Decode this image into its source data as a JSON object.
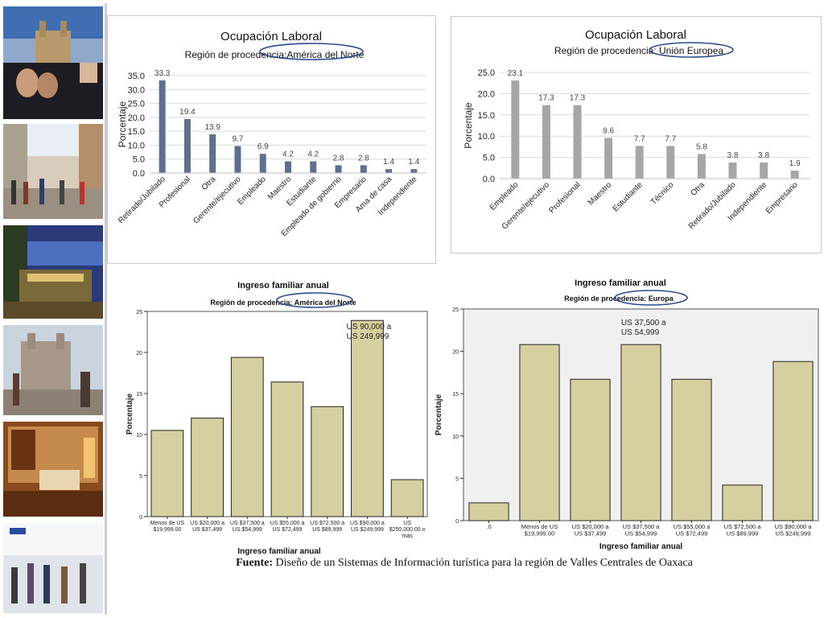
{
  "photos": [
    {
      "name": "photo-cathedral-pool",
      "desc": "pool"
    },
    {
      "name": "photo-street-crowd",
      "desc": "street"
    },
    {
      "name": "photo-terrace-night",
      "desc": "terrace"
    },
    {
      "name": "photo-church-plaza",
      "desc": "church"
    },
    {
      "name": "photo-hotel-room",
      "desc": "room"
    },
    {
      "name": "photo-airport",
      "desc": "airport"
    }
  ],
  "caption": {
    "label": "Fuente:",
    "text": " Diseño de un Sistemas de Información turística para la región de Valles Centrales de Oaxaca"
  },
  "chart_data": [
    {
      "id": "chart-tl",
      "type": "bar",
      "title": "Ocupación Laboral",
      "subtitle": "Región de procedencia:América del Norte",
      "ylabel": "Porcentaje",
      "xlabel": "",
      "ylim": [
        0,
        35
      ],
      "yticks": [
        "0.0",
        "5.0",
        "10.0",
        "15.0",
        "20.0",
        "25.0",
        "30.0",
        "35.0"
      ],
      "categories": [
        "Retirado/Jubilado",
        "Profesional",
        "Otra",
        "Gerente/ejecutivo",
        "Empleado",
        "Maestro",
        "Estudiante",
        "Empleado de gobierno",
        "Empresario",
        "Ama de casa",
        "Independiente"
      ],
      "values": [
        33.3,
        19.4,
        13.9,
        9.7,
        6.9,
        4.2,
        4.2,
        2.8,
        2.8,
        1.4,
        1.4
      ],
      "labels": [
        "33.3",
        "19.4",
        "13.9",
        "9.7",
        "6.9",
        "4.2",
        "4.2",
        "2.8",
        "2.8",
        "1.4",
        "1.4"
      ],
      "color": "#5f6f8e"
    },
    {
      "id": "chart-tr",
      "type": "bar",
      "title": "Ocupación Laboral",
      "subtitle": "Región de procedencia: Unión Europea",
      "ylabel": "Porcentaje",
      "xlabel": "",
      "ylim": [
        0,
        25
      ],
      "yticks": [
        "0.0",
        "5.0",
        "10.0",
        "15.0",
        "20.0",
        "25.0"
      ],
      "categories": [
        "Empleado",
        "Gerente/ejecutivo",
        "Profesional",
        "Maestro",
        "Estudiante",
        "Técnico",
        "Otra",
        "Retirado/Jubilado",
        "Independiente",
        "Empresario"
      ],
      "values": [
        23.1,
        17.3,
        17.3,
        9.6,
        7.7,
        7.7,
        5.8,
        3.8,
        3.8,
        1.9
      ],
      "labels": [
        "23.1",
        "17.3",
        "17.3",
        "9.6",
        "7.7",
        "7.7",
        "5.8",
        "3.8",
        "3.8",
        "1.9"
      ],
      "color": "#a6a6a6"
    },
    {
      "id": "chart-bl",
      "type": "bar",
      "title": "Ingreso familiar anual",
      "subtitle": "Región de procedencia: América del Norte",
      "ylabel": "Porcentaje",
      "xlabel": "Ingreso familiar anual",
      "ylim": [
        0,
        25
      ],
      "yticks": [
        "0",
        "5",
        "10",
        "15",
        "20",
        "25"
      ],
      "categories": [
        [
          "Menos de US",
          "$19,999.00"
        ],
        [
          "US $20,000 a",
          "US $37,499"
        ],
        [
          "US $37,500 a",
          "US $54,999"
        ],
        [
          "US $55,000 a",
          "US $72,499"
        ],
        [
          "US $72,500 a",
          "US $89,999"
        ],
        [
          "US $90,000 a",
          "US $249,999"
        ],
        [
          "US",
          "$250,000.00 o",
          "más"
        ]
      ],
      "values": [
        10.5,
        12.0,
        19.4,
        16.4,
        13.4,
        23.9,
        4.5
      ],
      "annotation": [
        "US 90,000 a",
        "US 249,999"
      ],
      "annotation_index": 5,
      "color": "#d6d0a0"
    },
    {
      "id": "chart-br",
      "type": "bar",
      "title": "Ingreso familiar anual",
      "subtitle": "Región de procedencia: Europa",
      "ylabel": "Porcentaje",
      "xlabel": "Ingreso familiar anual",
      "ylim": [
        0,
        25
      ],
      "yticks": [
        "0",
        "5",
        "10",
        "15",
        "20",
        "25"
      ],
      "categories": [
        [
          ".0"
        ],
        [
          "Menos de US",
          "$19,999.00"
        ],
        [
          "US $20,000 a",
          "US $37,499"
        ],
        [
          "US $37,500 a",
          "US $54,999"
        ],
        [
          "US $55,000 a",
          "US $72,499"
        ],
        [
          "US $72,500 a",
          "US $89,999"
        ],
        [
          "US $90,000 a",
          "US $249,999"
        ]
      ],
      "values": [
        2.1,
        20.8,
        16.7,
        20.8,
        16.7,
        4.2,
        18.8
      ],
      "annotation": [
        "US 37,500 a",
        "US 54,999"
      ],
      "annotation_index": 3,
      "color": "#d6d0a0"
    }
  ]
}
